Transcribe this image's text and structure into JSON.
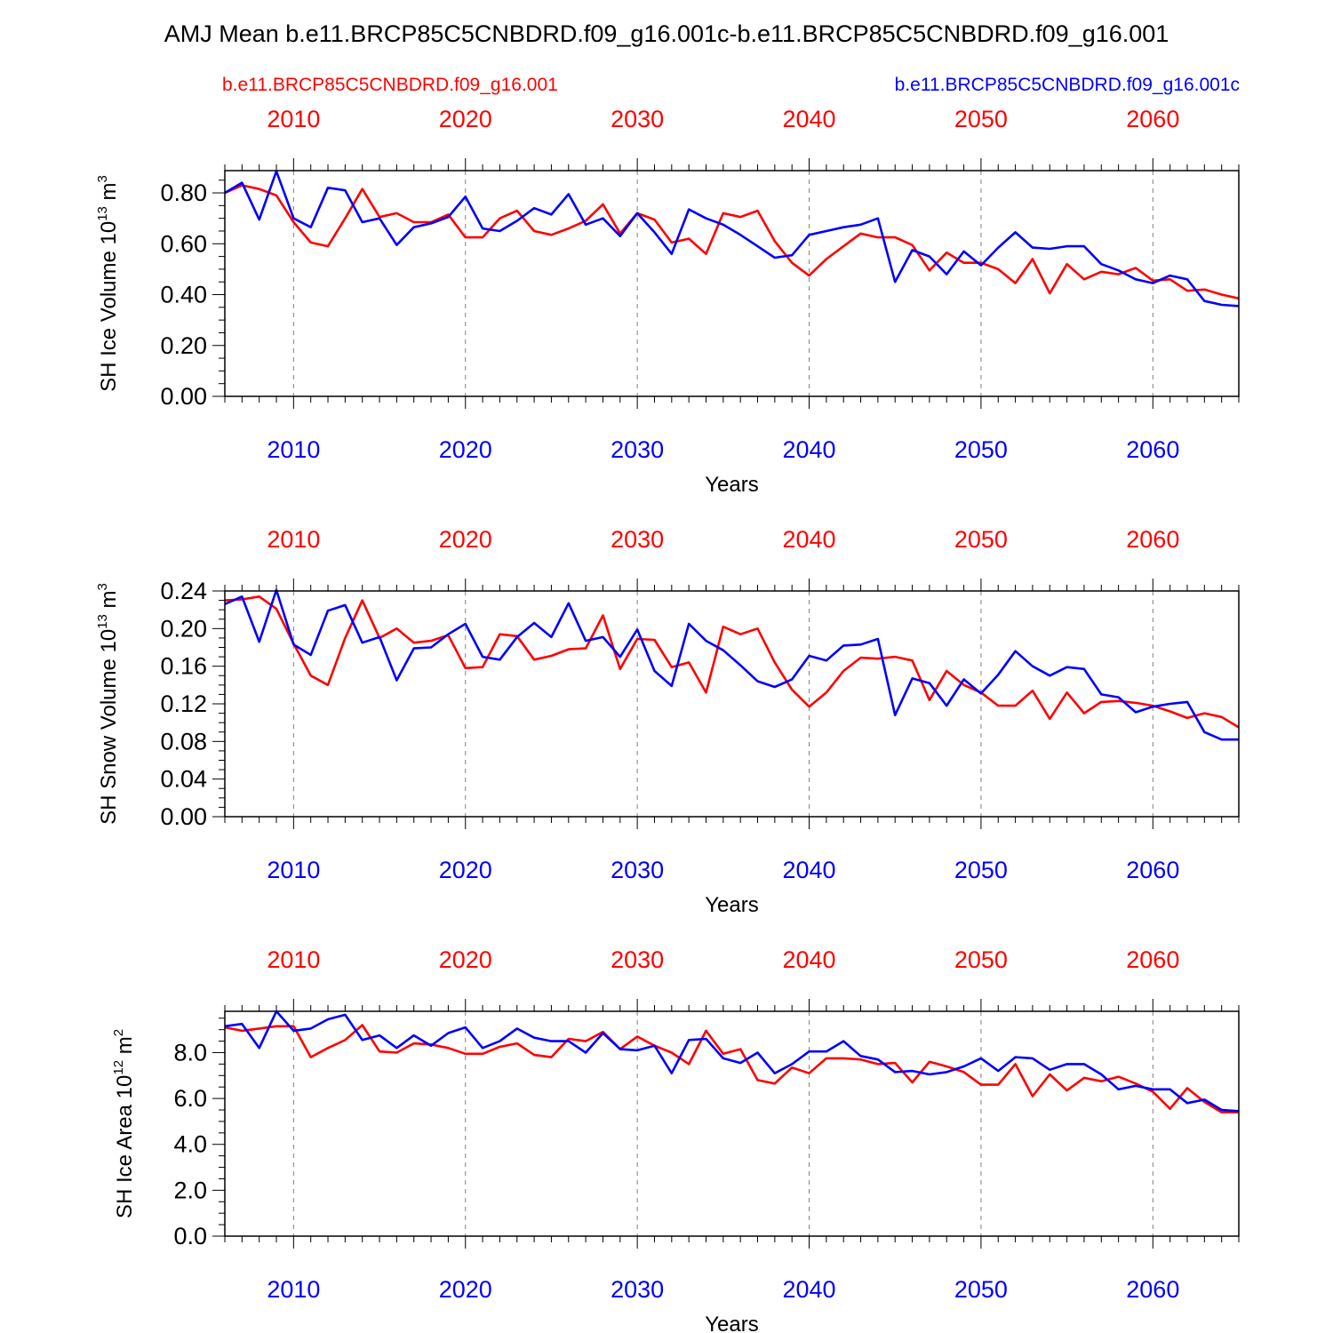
{
  "title": "AMJ Mean b.e11.BRCP85C5CNBDRD.f09_g16.001c-b.e11.BRCP85C5CNBDRD.f09_g16.001",
  "legend": {
    "left": {
      "label": "b.e11.BRCP85C5CNBDRD.f09_g16.001",
      "color": "#ff0000"
    },
    "right": {
      "label": "b.e11.BRCP85C5CNBDRD.f09_g16.001c",
      "color": "#0000ff"
    }
  },
  "colors": {
    "red": "#ff0000",
    "blue": "#0000ff",
    "axis": "#000000",
    "grid": "#808080"
  },
  "chart_data": [
    {
      "type": "line",
      "ylabel": "SH Ice Volume 10^13 m^3",
      "ylabel_parts": {
        "main": "SH Ice Volume 10",
        "exp1": "13",
        "mid": " m",
        "exp2": "3"
      },
      "xlabel": "Years",
      "xlim": [
        2006,
        2065
      ],
      "ylim": [
        0.0,
        0.8875
      ],
      "yticks": [
        "0.00",
        "0.20",
        "0.40",
        "0.60",
        "0.80"
      ],
      "ytick_values": [
        0,
        0.2,
        0.4,
        0.6,
        0.8
      ],
      "yminor_step": 0.05,
      "xticks": [
        "2010",
        "2020",
        "2030",
        "2040",
        "2050",
        "2060"
      ],
      "xtick_values": [
        2010,
        2020,
        2030,
        2040,
        2050,
        2060
      ],
      "x_start": 2006,
      "grid": "vertical dashed at major x ticks",
      "series": [
        {
          "name": "b.e11.BRCP85C5CNBDRD.f09_g16.001",
          "color": "#ff0000",
          "values": [
            0.8,
            0.83,
            0.815,
            0.79,
            0.685,
            0.605,
            0.59,
            0.7,
            0.815,
            0.705,
            0.72,
            0.685,
            0.685,
            0.715,
            0.625,
            0.625,
            0.7,
            0.73,
            0.65,
            0.635,
            0.66,
            0.69,
            0.755,
            0.64,
            0.72,
            0.695,
            0.605,
            0.62,
            0.56,
            0.72,
            0.705,
            0.73,
            0.61,
            0.525,
            0.475,
            0.54,
            0.59,
            0.64,
            0.625,
            0.625,
            0.595,
            0.495,
            0.565,
            0.525,
            0.525,
            0.5,
            0.445,
            0.54,
            0.405,
            0.52,
            0.46,
            0.49,
            0.48,
            0.505,
            0.455,
            0.46,
            0.415,
            0.42,
            0.4,
            0.385
          ]
        },
        {
          "name": "b.e11.BRCP85C5CNBDRD.f09_g16.001c",
          "color": "#0000ff",
          "values": [
            0.8,
            0.84,
            0.695,
            0.885,
            0.7,
            0.665,
            0.82,
            0.81,
            0.685,
            0.7,
            0.595,
            0.665,
            0.68,
            0.705,
            0.785,
            0.66,
            0.65,
            0.69,
            0.74,
            0.715,
            0.795,
            0.675,
            0.7,
            0.63,
            0.72,
            0.645,
            0.56,
            0.735,
            0.7,
            0.675,
            0.635,
            0.59,
            0.545,
            0.555,
            0.635,
            0.65,
            0.665,
            0.675,
            0.7,
            0.45,
            0.575,
            0.55,
            0.48,
            0.57,
            0.515,
            0.585,
            0.645,
            0.585,
            0.58,
            0.59,
            0.59,
            0.52,
            0.495,
            0.46,
            0.445,
            0.475,
            0.46,
            0.375,
            0.36,
            0.355
          ]
        }
      ]
    },
    {
      "type": "line",
      "ylabel": "SH Snow Volume 10^13 m^3",
      "ylabel_parts": {
        "main": "SH Snow Volume 10",
        "exp1": "13",
        "mid": " m",
        "exp2": "3"
      },
      "xlabel": "Years",
      "xlim": [
        2006,
        2065
      ],
      "ylim": [
        0.0,
        0.24
      ],
      "yticks": [
        "0.00",
        "0.04",
        "0.08",
        "0.12",
        "0.16",
        "0.20",
        "0.24"
      ],
      "ytick_values": [
        0,
        0.04,
        0.08,
        0.12,
        0.16,
        0.2,
        0.24
      ],
      "yminor_step": 0.01,
      "xticks": [
        "2010",
        "2020",
        "2030",
        "2040",
        "2050",
        "2060"
      ],
      "xtick_values": [
        2010,
        2020,
        2030,
        2040,
        2050,
        2060
      ],
      "x_start": 2006,
      "grid": "vertical dashed at major x ticks",
      "series": [
        {
          "name": "b.e11.BRCP85C5CNBDRD.f09_g16.001",
          "color": "#ff0000",
          "values": [
            0.23,
            0.231,
            0.234,
            0.221,
            0.184,
            0.15,
            0.14,
            0.19,
            0.23,
            0.19,
            0.2,
            0.185,
            0.187,
            0.193,
            0.158,
            0.159,
            0.194,
            0.192,
            0.167,
            0.171,
            0.178,
            0.179,
            0.214,
            0.157,
            0.189,
            0.188,
            0.159,
            0.164,
            0.132,
            0.202,
            0.194,
            0.2,
            0.164,
            0.135,
            0.117,
            0.132,
            0.155,
            0.169,
            0.168,
            0.17,
            0.166,
            0.124,
            0.155,
            0.14,
            0.132,
            0.118,
            0.118,
            0.134,
            0.104,
            0.132,
            0.11,
            0.122,
            0.123,
            0.121,
            0.118,
            0.112,
            0.105,
            0.11,
            0.106,
            0.095
          ]
        },
        {
          "name": "b.e11.BRCP85C5CNBDRD.f09_g16.001c",
          "color": "#0000ff",
          "values": [
            0.226,
            0.234,
            0.186,
            0.241,
            0.183,
            0.172,
            0.219,
            0.225,
            0.185,
            0.191,
            0.145,
            0.179,
            0.18,
            0.194,
            0.205,
            0.17,
            0.167,
            0.191,
            0.206,
            0.191,
            0.227,
            0.187,
            0.191,
            0.17,
            0.199,
            0.155,
            0.139,
            0.205,
            0.187,
            0.177,
            0.161,
            0.144,
            0.138,
            0.146,
            0.171,
            0.166,
            0.182,
            0.183,
            0.189,
            0.108,
            0.147,
            0.142,
            0.118,
            0.146,
            0.131,
            0.151,
            0.176,
            0.16,
            0.15,
            0.159,
            0.157,
            0.13,
            0.127,
            0.111,
            0.117,
            0.12,
            0.122,
            0.09,
            0.082,
            0.082
          ]
        }
      ]
    },
    {
      "type": "line",
      "ylabel": "SH Ice Area 10^12 m^2",
      "ylabel_parts": {
        "main": "SH Ice Area 10",
        "exp1": "12",
        "mid": " m",
        "exp2": "2"
      },
      "xlabel": "Years",
      "xlim": [
        2006,
        2065
      ],
      "ylim": [
        0.0,
        9.8
      ],
      "yticks": [
        "0.0",
        "2.0",
        "4.0",
        "6.0",
        "8.0"
      ],
      "ytick_values": [
        0,
        2,
        4,
        6,
        8
      ],
      "yminor_step": 0.5,
      "xticks": [
        "2010",
        "2020",
        "2030",
        "2040",
        "2050",
        "2060"
      ],
      "xtick_values": [
        2010,
        2020,
        2030,
        2040,
        2050,
        2060
      ],
      "x_start": 2006,
      "grid": "vertical dashed at major x ticks",
      "series": [
        {
          "name": "b.e11.BRCP85C5CNBDRD.f09_g16.001",
          "color": "#ff0000",
          "values": [
            9.1,
            8.95,
            9.05,
            9.15,
            9.15,
            7.8,
            8.2,
            8.55,
            9.2,
            8.05,
            8.0,
            8.4,
            8.35,
            8.2,
            7.95,
            7.95,
            8.25,
            8.4,
            7.9,
            7.8,
            8.6,
            8.5,
            8.9,
            8.15,
            8.7,
            8.3,
            8.0,
            7.5,
            8.95,
            7.95,
            8.15,
            6.8,
            6.65,
            7.35,
            7.1,
            7.75,
            7.75,
            7.7,
            7.5,
            7.55,
            6.7,
            7.6,
            7.4,
            7.15,
            6.6,
            6.6,
            7.5,
            6.1,
            7.05,
            6.35,
            6.9,
            6.75,
            6.95,
            6.65,
            6.3,
            5.55,
            6.45,
            5.85,
            5.4,
            5.4
          ]
        },
        {
          "name": "b.e11.BRCP85C5CNBDRD.f09_g16.001c",
          "color": "#0000ff",
          "values": [
            9.15,
            9.25,
            8.2,
            9.8,
            8.95,
            9.05,
            9.45,
            9.65,
            8.55,
            8.75,
            8.2,
            8.75,
            8.3,
            8.85,
            9.1,
            8.2,
            8.5,
            9.05,
            8.65,
            8.5,
            8.5,
            8.0,
            8.85,
            8.15,
            8.1,
            8.3,
            7.1,
            8.55,
            8.6,
            7.75,
            7.55,
            8.0,
            7.1,
            7.5,
            8.05,
            8.05,
            8.5,
            7.85,
            7.7,
            7.15,
            7.2,
            7.05,
            7.15,
            7.4,
            7.75,
            7.2,
            7.8,
            7.75,
            7.25,
            7.5,
            7.5,
            7.05,
            6.4,
            6.55,
            6.4,
            6.4,
            5.8,
            5.95,
            5.5,
            5.45
          ]
        }
      ]
    }
  ]
}
